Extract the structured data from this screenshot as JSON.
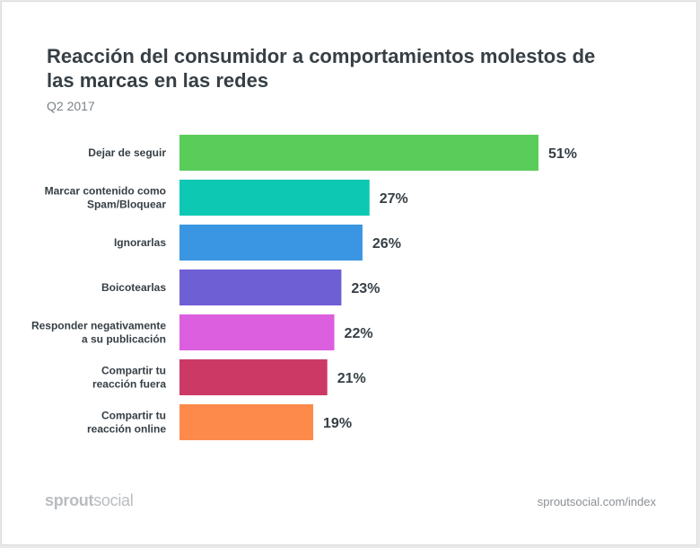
{
  "chart_data": {
    "type": "bar",
    "orientation": "horizontal",
    "title": "Reacción del consumidor a comportamientos molestos de las marcas en las redes",
    "subtitle": "Q2 2017",
    "categories": [
      [
        "Dejar de seguir"
      ],
      [
        "Marcar contenido como",
        "Spam/Bloquear"
      ],
      [
        "Ignorarlas"
      ],
      [
        "Boicotearlas"
      ],
      [
        "Responder negativamente",
        "a su publicación"
      ],
      [
        "Compartir tu",
        "reacción fuera"
      ],
      [
        "Compartir tu",
        "reacción online"
      ]
    ],
    "values": [
      51,
      27,
      26,
      23,
      22,
      21,
      19
    ],
    "value_labels": [
      "51%",
      "27%",
      "26%",
      "23%",
      "22%",
      "21%",
      "19%"
    ],
    "colors": [
      "#59cc5a",
      "#0dc8b3",
      "#3a96e2",
      "#6f5fd5",
      "#db5fdf",
      "#cd3965",
      "#fd8a4a"
    ],
    "unit": "%",
    "xlim": [
      0,
      51
    ],
    "grid": false,
    "legend": "none"
  },
  "footer": {
    "brand_bold": "sprout",
    "brand_light": "social",
    "url": "sproutsocial.com/index"
  }
}
